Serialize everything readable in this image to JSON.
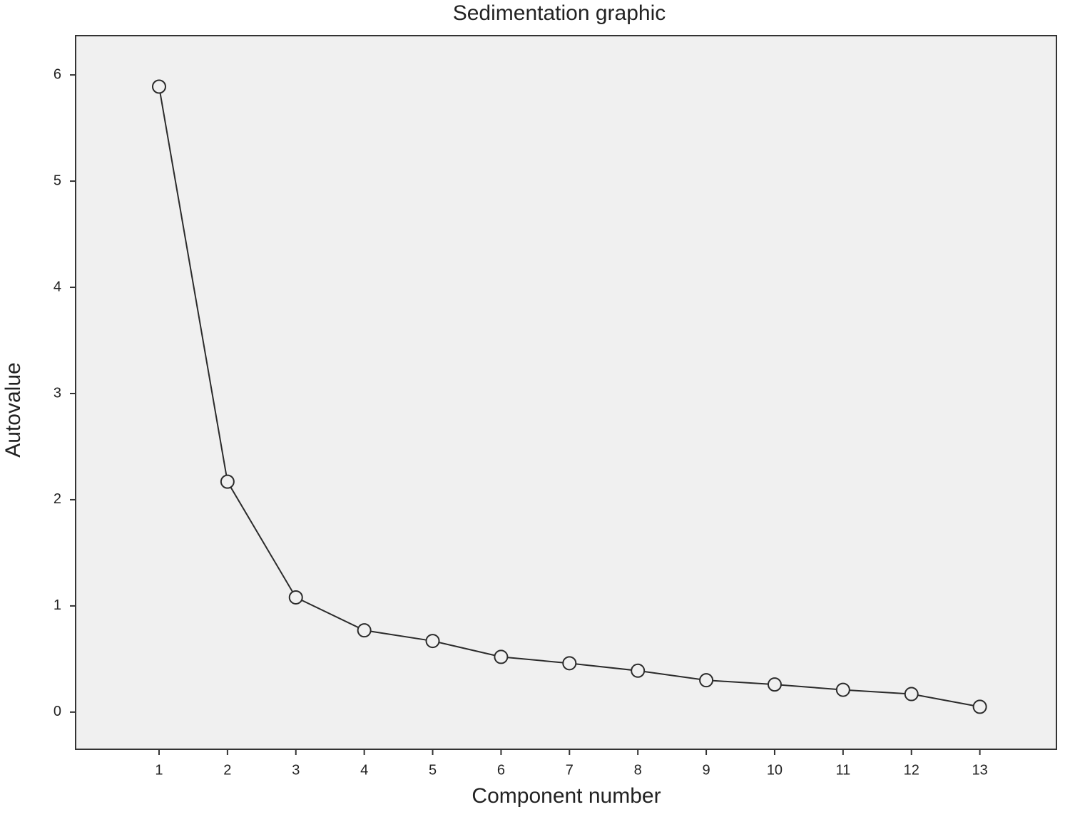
{
  "chart_data": {
    "type": "line",
    "title": "Sedimentation graphic",
    "x_label": "Component number",
    "y_label": "Autovalue",
    "x": [
      1,
      2,
      3,
      4,
      5,
      6,
      7,
      8,
      9,
      10,
      11,
      12,
      13
    ],
    "values": [
      5.89,
      2.17,
      1.08,
      0.77,
      0.67,
      0.52,
      0.46,
      0.39,
      0.3,
      0.26,
      0.21,
      0.17,
      0.05
    ],
    "color": "#2b2b2b",
    "xlim": [
      -0.22,
      14.12
    ],
    "xticks": [
      1,
      2,
      3,
      4,
      5,
      6,
      7,
      8,
      9,
      10,
      11,
      12,
      13
    ],
    "ylim": [
      -0.35,
      6.37
    ],
    "yticks": [
      0,
      1,
      2,
      3,
      4,
      5,
      6
    ],
    "markers": "open-circle",
    "background": "#f0f0f0"
  }
}
